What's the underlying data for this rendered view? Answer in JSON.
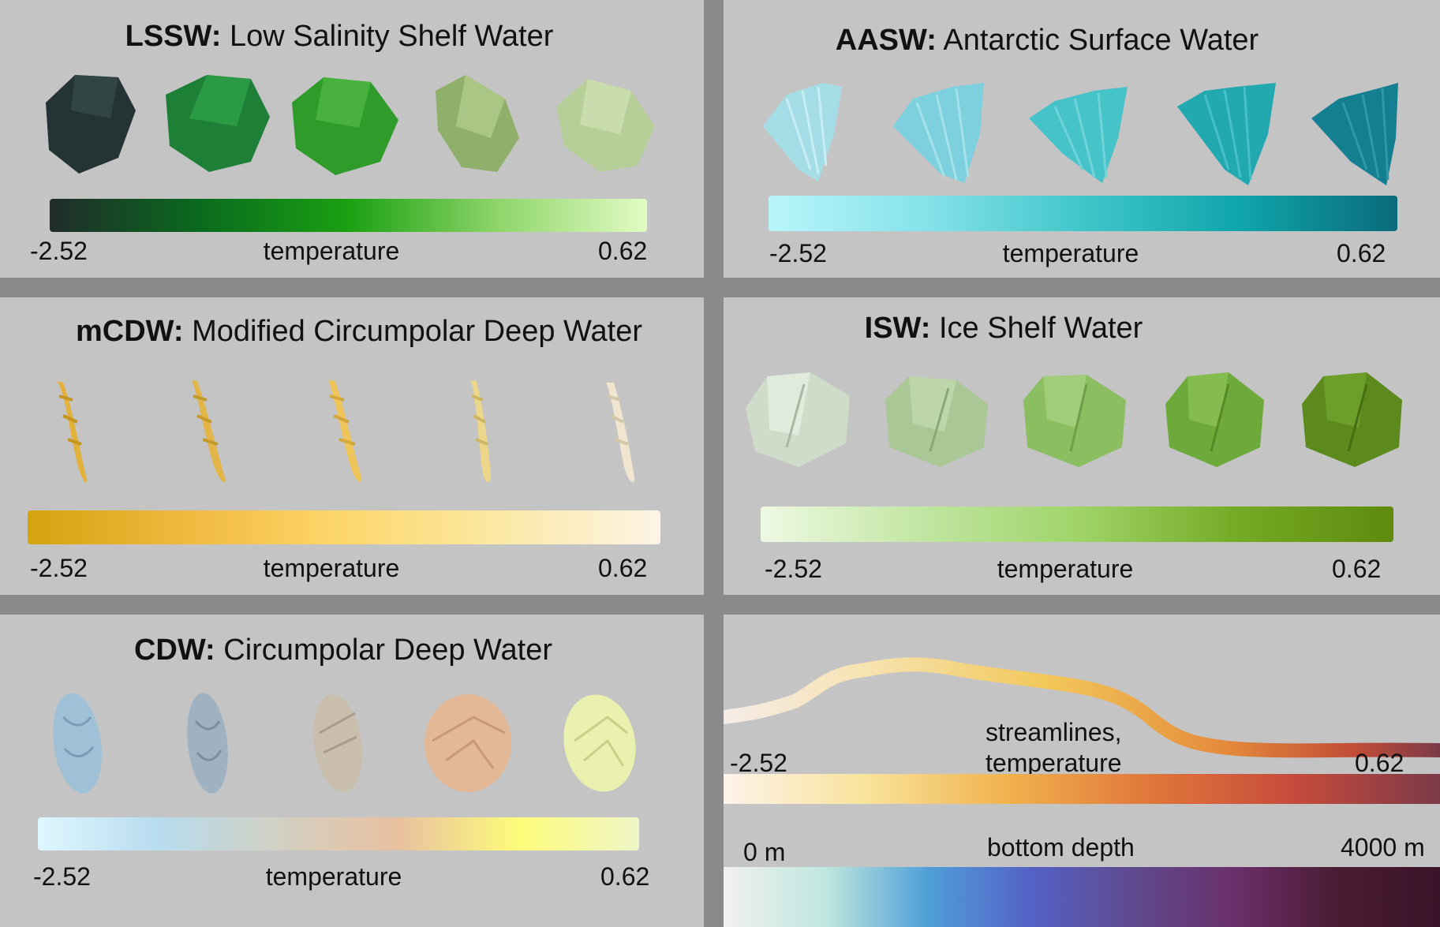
{
  "panels": [
    {
      "id": "lssw",
      "abbr": "LSSW:",
      "name": "Low Salinity Shelf Water",
      "min": "-2.52",
      "max": "0.62",
      "variable": "temperature",
      "gradient": [
        "#202b2b",
        "#0a6a1e",
        "#1aa012",
        "#8fd56a",
        "#e2fcc4"
      ],
      "glyph_colors": [
        "#243334",
        "#1e7f37",
        "#2e9b2b",
        "#8fb06b",
        "#b6cf98"
      ]
    },
    {
      "id": "aasw",
      "abbr": "AASW:",
      "name": "Antarctic Surface Water",
      "min": "-2.52",
      "max": "0.62",
      "variable": "temperature",
      "gradient": [
        "#b9f5fb",
        "#86e2ea",
        "#3fc6c9",
        "#0fa5ab",
        "#0a6b7a"
      ],
      "glyph_colors": [
        "#a5dde6",
        "#7dd0dd",
        "#46c2c9",
        "#22a8b0",
        "#137f90"
      ]
    },
    {
      "id": "mcdw",
      "abbr": "mCDW:",
      "name": "Modified Circumpolar Deep Water",
      "min": "-2.52",
      "max": "0.62",
      "variable": "temperature",
      "gradient": [
        "#d3a30f",
        "#f0b93f",
        "#fdd76c",
        "#fbe9a6",
        "#fcf4e6"
      ],
      "glyph_colors": [
        "#e2b13b",
        "#e3b548",
        "#efc55a",
        "#ecd689",
        "#f0e6cf"
      ]
    },
    {
      "id": "isw",
      "abbr": "ISW:",
      "name": "Ice Shelf Water",
      "min": "-2.52",
      "max": "0.62",
      "variable": "temperature",
      "gradient": [
        "#eef9e3",
        "#c2e6a3",
        "#9fd46a",
        "#74ab25",
        "#5f8a0d"
      ],
      "glyph_colors": [
        "#cfdcc9",
        "#a9c896",
        "#8bbe61",
        "#6ea93b",
        "#5c8a1c"
      ]
    },
    {
      "id": "cdw",
      "abbr": "CDW:",
      "name": "Circumpolar Deep Water",
      "min": "-2.52",
      "max": "0.62",
      "variable": "temperature",
      "gradient": [
        "#dff7ff",
        "#b7dcef",
        "#d2d0c2",
        "#e9c0a0",
        "#fdfc7a",
        "#f0f6c8"
      ],
      "glyph_colors": [
        "#9fc1d8",
        "#9fb2c2",
        "#c9bdab",
        "#e2b897",
        "#eaf0ad"
      ]
    }
  ],
  "legend": {
    "streamlines_label_1": "streamlines,",
    "streamlines_label_2": "temperature",
    "streamlines_min": "-2.52",
    "streamlines_max": "0.62",
    "streamlines_gradient": [
      "#fdf3ea",
      "#f9e39a",
      "#f0b14d",
      "#e0753a",
      "#c64a3c",
      "#7b3a48"
    ],
    "depth_label": "bottom depth",
    "depth_min": "0 m",
    "depth_max": "4000 m",
    "depth_gradient": [
      "#f1f0ef",
      "#bfe7df",
      "#4f9fd8",
      "#5461c6",
      "#5f4a8e",
      "#6a2f6a",
      "#4a1c32",
      "#3a1428"
    ]
  }
}
